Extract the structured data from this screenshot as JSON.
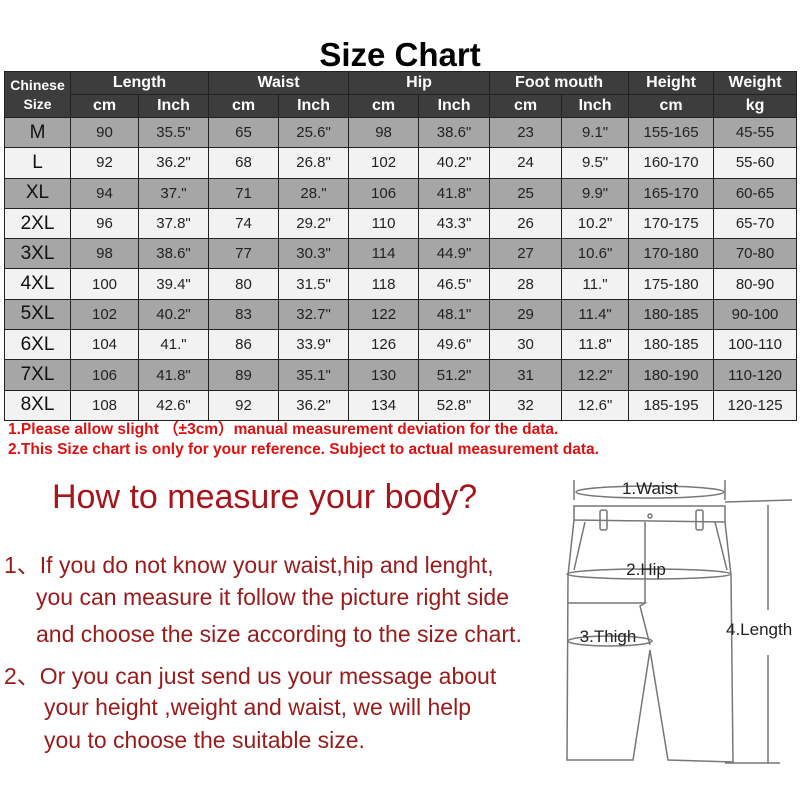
{
  "title": "Size Chart",
  "header": {
    "size": [
      "Chinese",
      "Size"
    ],
    "groups": [
      "Length",
      "Waist",
      "Hip",
      "Foot mouth",
      "Height",
      "Weight"
    ],
    "units": [
      "cm",
      "Inch",
      "cm",
      "Inch",
      "cm",
      "Inch",
      "cm",
      "Inch",
      "cm",
      "kg"
    ]
  },
  "rows": [
    [
      "M",
      "90",
      "35.5\"",
      "65",
      "25.6\"",
      "98",
      "38.6\"",
      "23",
      "9.1\"",
      "155-165",
      "45-55"
    ],
    [
      "L",
      "92",
      "36.2\"",
      "68",
      "26.8\"",
      "102",
      "40.2\"",
      "24",
      "9.5\"",
      "160-170",
      "55-60"
    ],
    [
      "XL",
      "94",
      "37.\"",
      "71",
      "28.\"",
      "106",
      "41.8\"",
      "25",
      "9.9\"",
      "165-170",
      "60-65"
    ],
    [
      "2XL",
      "96",
      "37.8\"",
      "74",
      "29.2\"",
      "110",
      "43.3\"",
      "26",
      "10.2\"",
      "170-175",
      "65-70"
    ],
    [
      "3XL",
      "98",
      "38.6\"",
      "77",
      "30.3\"",
      "114",
      "44.9\"",
      "27",
      "10.6\"",
      "170-180",
      "70-80"
    ],
    [
      "4XL",
      "100",
      "39.4\"",
      "80",
      "31.5\"",
      "118",
      "46.5\"",
      "28",
      "11.\"",
      "175-180",
      "80-90"
    ],
    [
      "5XL",
      "102",
      "40.2\"",
      "83",
      "32.7\"",
      "122",
      "48.1\"",
      "29",
      "11.4\"",
      "180-185",
      "90-100"
    ],
    [
      "6XL",
      "104",
      "41.\"",
      "86",
      "33.9\"",
      "126",
      "49.6\"",
      "30",
      "11.8\"",
      "180-185",
      "100-110"
    ],
    [
      "7XL",
      "106",
      "41.8\"",
      "89",
      "35.1\"",
      "130",
      "51.2\"",
      "31",
      "12.2\"",
      "180-190",
      "110-120"
    ],
    [
      "8XL",
      "108",
      "42.6\"",
      "92",
      "36.2\"",
      "134",
      "52.8\"",
      "32",
      "12.6\"",
      "185-195",
      "120-125"
    ]
  ],
  "notes": [
    "1.Please allow slight （±3cm）manual measurement deviation for the data.",
    "2.This Size chart is only for your reference. Subject to actual measurement data."
  ],
  "howto": "How to measure your body?",
  "instructions": [
    "1、If you do not know your waist,hip and lenght,",
    "you can measure it follow the picture right side",
    "and choose the size according to the size chart.",
    "2、Or you can just send us your message about",
    "your height ,weight and waist, we will help",
    "you to choose the suitable size."
  ],
  "diagram": {
    "waist": "1.Waist",
    "hip": "2.Hip",
    "thigh": "3.Thigh",
    "length": "4.Length"
  },
  "colors": {
    "header_bg": "#3d3d3d",
    "row_dark": "#a6a6a6",
    "row_light": "#f2f2f2",
    "note": "#e01010",
    "howto": "#a8141c"
  }
}
